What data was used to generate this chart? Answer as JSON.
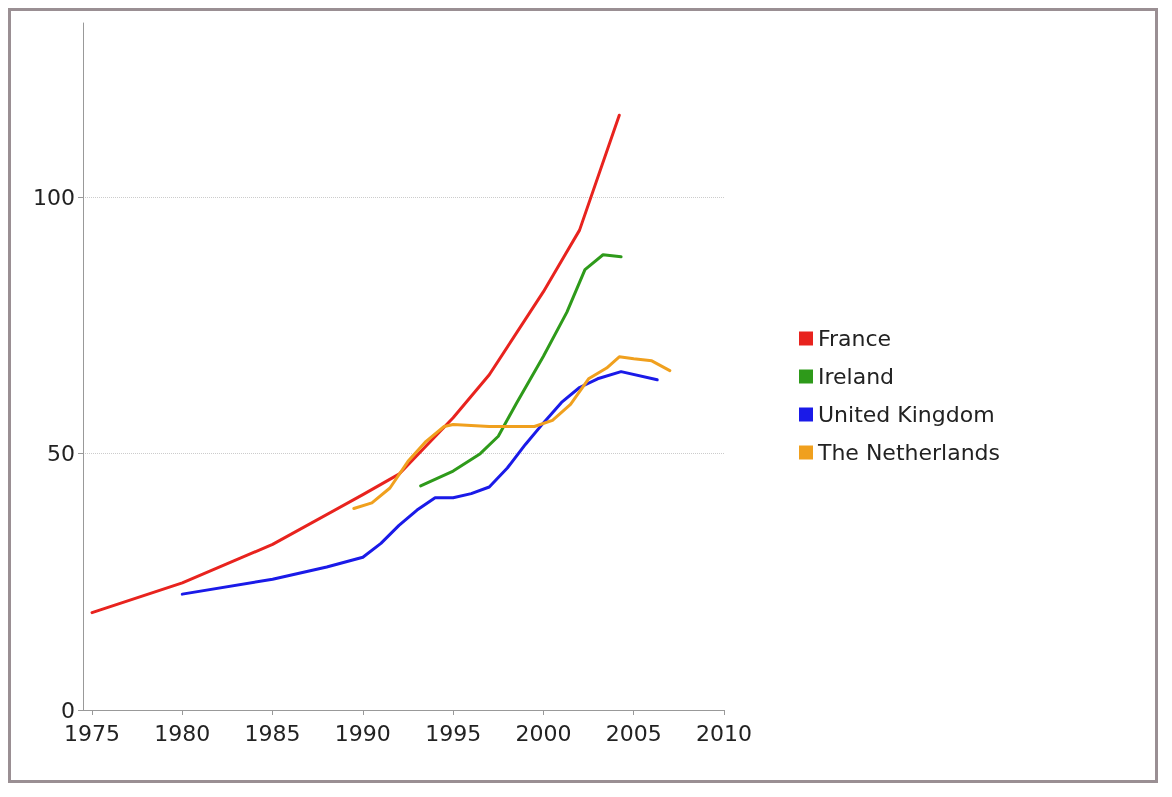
{
  "chart_data": {
    "type": "line",
    "xlim": [
      1974.5,
      2010
    ],
    "ylim": [
      0,
      134
    ],
    "xticks": [
      1975,
      1980,
      1985,
      1990,
      1995,
      2000,
      2005,
      2010
    ],
    "yticks": [
      0,
      50,
      100
    ],
    "grid": "y",
    "legend": "right",
    "marker": "none",
    "line_style": "solid",
    "series": [
      {
        "name": "France",
        "color": "#e8231e",
        "x": [
          1975,
          1980,
          1985,
          1990,
          1992,
          1995,
          1997,
          2000,
          2002,
          2004.2
        ],
        "values": [
          19,
          24.8,
          32.3,
          42,
          46,
          57,
          65.4,
          81.6,
          93.6,
          116
        ]
      },
      {
        "name": "Ireland",
        "color": "#2e9a1a",
        "x": [
          1993.2,
          1995,
          1996.5,
          1997.5,
          1998.5,
          2000,
          2001.3,
          2002.3,
          2003.3,
          2004.3
        ],
        "values": [
          43.7,
          46.6,
          50,
          53.4,
          59.8,
          69,
          77.6,
          85.9,
          88.8,
          88.4
        ]
      },
      {
        "name": "United Kingdom",
        "color": "#1a1ae8",
        "x": [
          1980,
          1985,
          1988,
          1990,
          1991,
          1992,
          1993,
          1994,
          1995,
          1996,
          1997,
          1998,
          1999,
          2000,
          2001,
          2002,
          2003,
          2004.3,
          2006.3
        ],
        "values": [
          22.6,
          25.5,
          27.9,
          29.8,
          32.5,
          36,
          39,
          41.4,
          41.4,
          42.2,
          43.5,
          47.2,
          51.8,
          56,
          60,
          62.9,
          64.6,
          66,
          64.4
        ]
      },
      {
        "name": "The Netherlands",
        "color": "#f0a01e",
        "x": [
          1989.5,
          1990.5,
          1991.5,
          1992.5,
          1993.5,
          1994.5,
          1995,
          1997,
          1999.5,
          2000.5,
          2001.5,
          2002.5,
          2003.5,
          2004.2,
          2005,
          2006,
          2007
        ],
        "values": [
          39.3,
          40.4,
          43.3,
          48.5,
          52.4,
          55.3,
          55.7,
          55.3,
          55.3,
          56.5,
          59.6,
          64.6,
          66.7,
          68.9,
          68.5,
          68.1,
          66.2
        ]
      }
    ]
  }
}
